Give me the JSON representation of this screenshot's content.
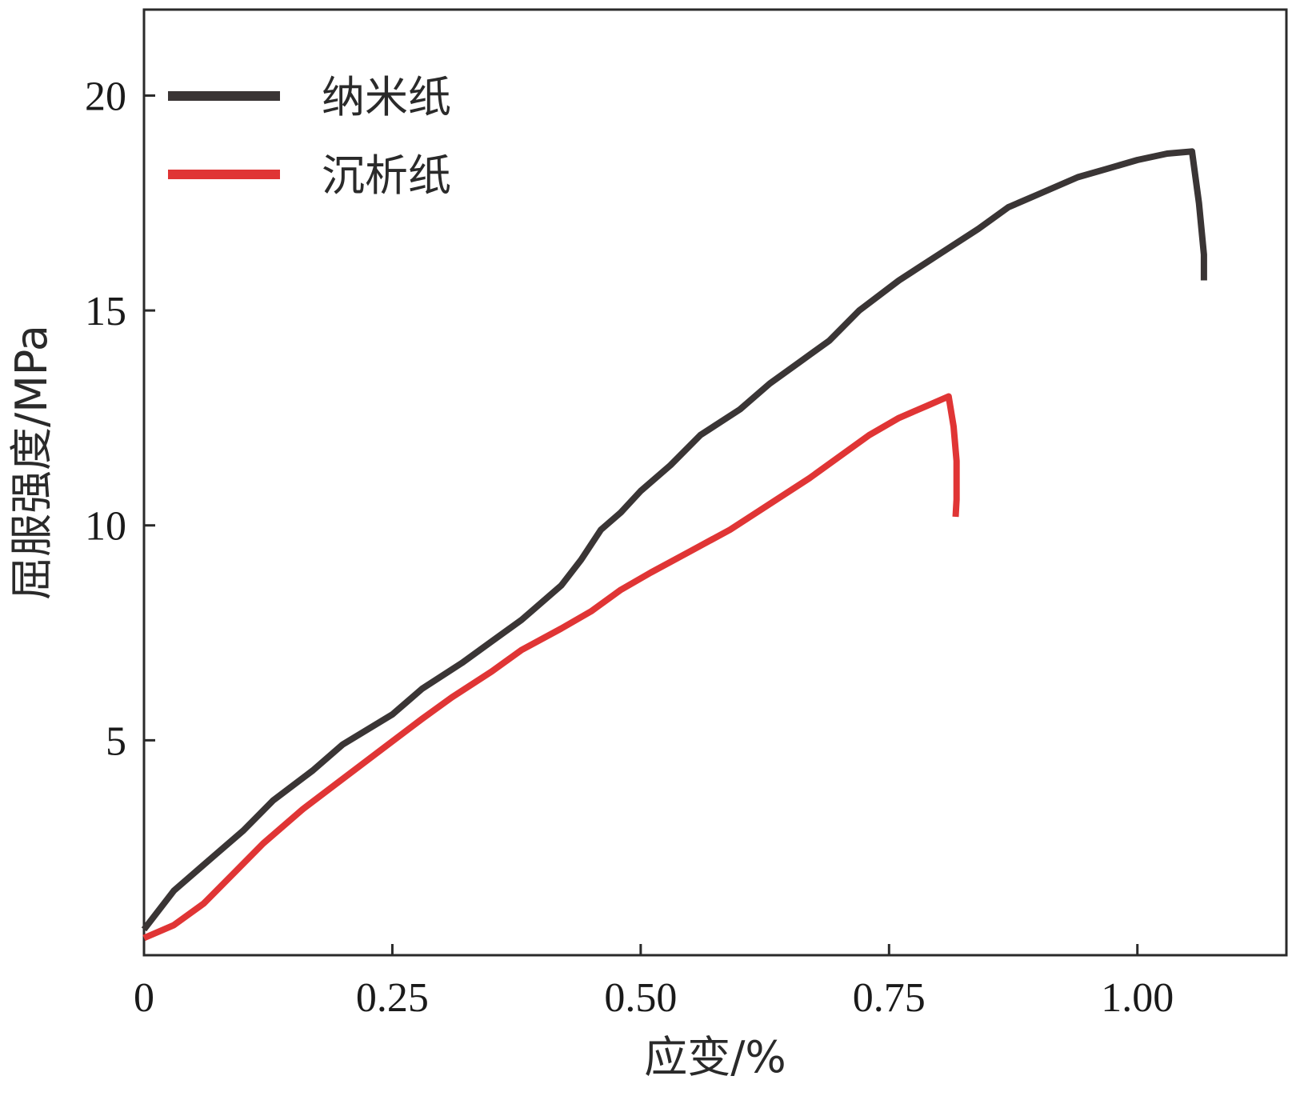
{
  "chart_data": {
    "type": "line",
    "xlabel": "应变/%",
    "ylabel": "屈服强度/MPa",
    "xlim": [
      0,
      1.15
    ],
    "ylim": [
      0,
      22
    ],
    "x_ticks": [
      {
        "value": 0,
        "label": "0"
      },
      {
        "value": 0.25,
        "label": "0.25"
      },
      {
        "value": 0.5,
        "label": "0.50"
      },
      {
        "value": 0.75,
        "label": "0.75"
      },
      {
        "value": 1.0,
        "label": "1.00"
      }
    ],
    "y_ticks": [
      {
        "value": 5,
        "label": "5"
      },
      {
        "value": 10,
        "label": "10"
      },
      {
        "value": 15,
        "label": "15"
      },
      {
        "value": 20,
        "label": "20"
      }
    ],
    "grid": false,
    "legend_position": "top-left",
    "series": [
      {
        "name": "纳米纸",
        "color": "#3a3535",
        "points": [
          [
            0,
            0.6
          ],
          [
            0.03,
            1.5
          ],
          [
            0.07,
            2.3
          ],
          [
            0.1,
            2.9
          ],
          [
            0.13,
            3.6
          ],
          [
            0.17,
            4.3
          ],
          [
            0.2,
            4.9
          ],
          [
            0.25,
            5.6
          ],
          [
            0.28,
            6.2
          ],
          [
            0.32,
            6.8
          ],
          [
            0.35,
            7.3
          ],
          [
            0.38,
            7.8
          ],
          [
            0.42,
            8.6
          ],
          [
            0.44,
            9.2
          ],
          [
            0.46,
            9.9
          ],
          [
            0.48,
            10.3
          ],
          [
            0.5,
            10.8
          ],
          [
            0.53,
            11.4
          ],
          [
            0.56,
            12.1
          ],
          [
            0.6,
            12.7
          ],
          [
            0.63,
            13.3
          ],
          [
            0.66,
            13.8
          ],
          [
            0.69,
            14.3
          ],
          [
            0.72,
            15.0
          ],
          [
            0.76,
            15.7
          ],
          [
            0.8,
            16.3
          ],
          [
            0.84,
            16.9
          ],
          [
            0.87,
            17.4
          ],
          [
            0.9,
            17.7
          ],
          [
            0.94,
            18.1
          ],
          [
            0.97,
            18.3
          ],
          [
            1.0,
            18.5
          ],
          [
            1.03,
            18.65
          ],
          [
            1.055,
            18.7
          ],
          [
            1.062,
            17.5
          ],
          [
            1.067,
            16.3
          ],
          [
            1.067,
            15.7
          ]
        ]
      },
      {
        "name": "沉析纸",
        "color": "#e03535",
        "points": [
          [
            0,
            0.4
          ],
          [
            0.03,
            0.7
          ],
          [
            0.06,
            1.2
          ],
          [
            0.09,
            1.9
          ],
          [
            0.12,
            2.6
          ],
          [
            0.16,
            3.4
          ],
          [
            0.2,
            4.1
          ],
          [
            0.24,
            4.8
          ],
          [
            0.28,
            5.5
          ],
          [
            0.31,
            6.0
          ],
          [
            0.35,
            6.6
          ],
          [
            0.38,
            7.1
          ],
          [
            0.42,
            7.6
          ],
          [
            0.45,
            8.0
          ],
          [
            0.48,
            8.5
          ],
          [
            0.51,
            8.9
          ],
          [
            0.55,
            9.4
          ],
          [
            0.59,
            9.9
          ],
          [
            0.63,
            10.5
          ],
          [
            0.67,
            11.1
          ],
          [
            0.7,
            11.6
          ],
          [
            0.73,
            12.1
          ],
          [
            0.76,
            12.5
          ],
          [
            0.79,
            12.8
          ],
          [
            0.81,
            13.0
          ],
          [
            0.815,
            12.3
          ],
          [
            0.818,
            11.5
          ],
          [
            0.818,
            10.6
          ],
          [
            0.817,
            10.2
          ]
        ]
      }
    ]
  }
}
